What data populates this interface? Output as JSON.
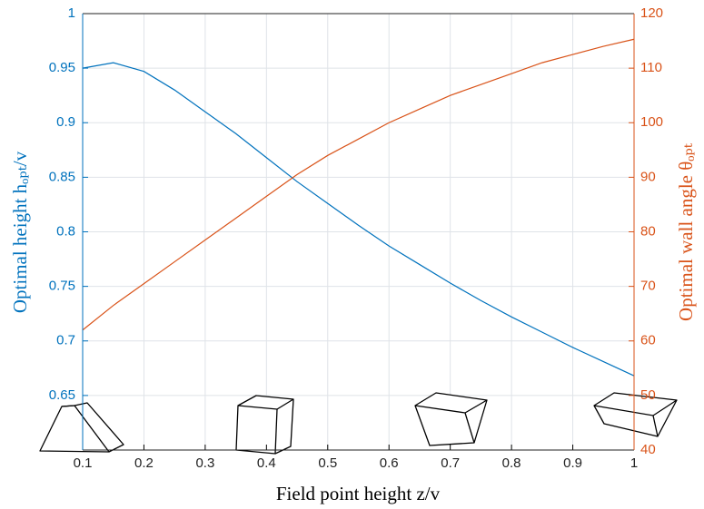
{
  "chart_data": {
    "type": "line",
    "x": [
      0.1,
      0.15,
      0.2,
      0.25,
      0.3,
      0.35,
      0.4,
      0.45,
      0.5,
      0.55,
      0.6,
      0.65,
      0.7,
      0.75,
      0.8,
      0.85,
      0.9,
      0.95,
      1
    ],
    "series": [
      {
        "color": "#0072bd",
        "axis": "y",
        "values": [
          0.95,
          0.955,
          0.947,
          0.93,
          0.91,
          0.89,
          0.868,
          0.846,
          0.826,
          0.806,
          0.787,
          0.77,
          0.753,
          0.737,
          0.722,
          0.708,
          0.694,
          0.681,
          0.668
        ]
      },
      {
        "color": "#d95319",
        "axis": "y2",
        "values": [
          62,
          66.5,
          70.5,
          74.5,
          78.5,
          82.5,
          86.5,
          90.5,
          94,
          97,
          100,
          102.5,
          105,
          107,
          109,
          111,
          112.5,
          114,
          115.3
        ]
      }
    ],
    "xlabel": "Field point height z/v",
    "ylabel": "Optimal height hₒₚₜ/v",
    "y2label": "Optimal wall angle θₒₚₜ",
    "xlim": [
      0.1,
      1
    ],
    "xticks": [
      0.1,
      0.2,
      0.3,
      0.4,
      0.5,
      0.6,
      0.7,
      0.8,
      0.9,
      1
    ],
    "ylim": [
      0.6,
      1
    ],
    "yticks": [
      0.65,
      0.7,
      0.75,
      0.8,
      0.85,
      0.9,
      0.95,
      1
    ],
    "y2lim": [
      40,
      120
    ],
    "y2ticks": [
      40,
      50,
      60,
      70,
      80,
      90,
      100,
      110,
      120
    ],
    "grid": true
  }
}
